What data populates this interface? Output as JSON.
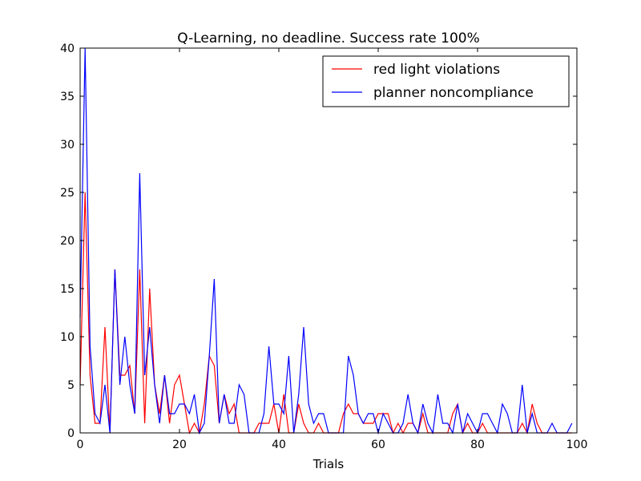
{
  "chart_data": {
    "type": "line",
    "title": "Q-Learning, no deadline. Success rate 100%",
    "xlabel": "Trials",
    "ylabel": "",
    "xlim": [
      0,
      100
    ],
    "ylim": [
      0,
      40
    ],
    "xticks": [
      "0",
      "20",
      "40",
      "60",
      "80",
      "100"
    ],
    "yticks": [
      "0",
      "5",
      "10",
      "15",
      "20",
      "25",
      "30",
      "35",
      "40"
    ],
    "legend_position": "top-right",
    "grid": false,
    "series": [
      {
        "name": "red light violations",
        "color": "#ff0000",
        "values": [
          5,
          25,
          6,
          1,
          1,
          11,
          0,
          17,
          6,
          6,
          7,
          2,
          17,
          1,
          15,
          5,
          2,
          6,
          1,
          5,
          6,
          3,
          0,
          1,
          0,
          3,
          8,
          7,
          1,
          4,
          2,
          3,
          0,
          0,
          0,
          0,
          1,
          1,
          1,
          3,
          0,
          4,
          0,
          0,
          3,
          1,
          0,
          0,
          1,
          0,
          0,
          0,
          0,
          2,
          3,
          2,
          2,
          1,
          1,
          1,
          2,
          2,
          2,
          0,
          1,
          0,
          1,
          1,
          0,
          2,
          0,
          0,
          0,
          0,
          0,
          2,
          3,
          0,
          1,
          0,
          0,
          1,
          0,
          0,
          0,
          0,
          0,
          0,
          0,
          1,
          0,
          3,
          1,
          0,
          0,
          0,
          0,
          0,
          0,
          0
        ]
      },
      {
        "name": "planner noncompliance",
        "color": "#0000ff",
        "values": [
          12,
          40,
          9,
          2,
          1,
          5,
          0,
          17,
          5,
          10,
          5,
          2,
          27,
          6,
          11,
          5,
          1,
          6,
          2,
          2,
          3,
          3,
          2,
          4,
          0,
          1,
          8,
          16,
          1,
          4,
          1,
          1,
          5,
          4,
          0,
          0,
          0,
          2,
          9,
          3,
          3,
          2,
          8,
          0,
          4,
          11,
          3,
          1,
          2,
          2,
          0,
          0,
          0,
          0,
          8,
          6,
          2,
          1,
          2,
          2,
          0,
          2,
          1,
          0,
          0,
          1,
          4,
          1,
          0,
          3,
          1,
          0,
          4,
          1,
          1,
          0,
          3,
          0,
          2,
          1,
          0,
          2,
          2,
          1,
          0,
          3,
          2,
          0,
          0,
          5,
          0,
          2,
          0,
          0,
          0,
          1,
          0,
          0,
          0,
          1
        ]
      }
    ]
  }
}
